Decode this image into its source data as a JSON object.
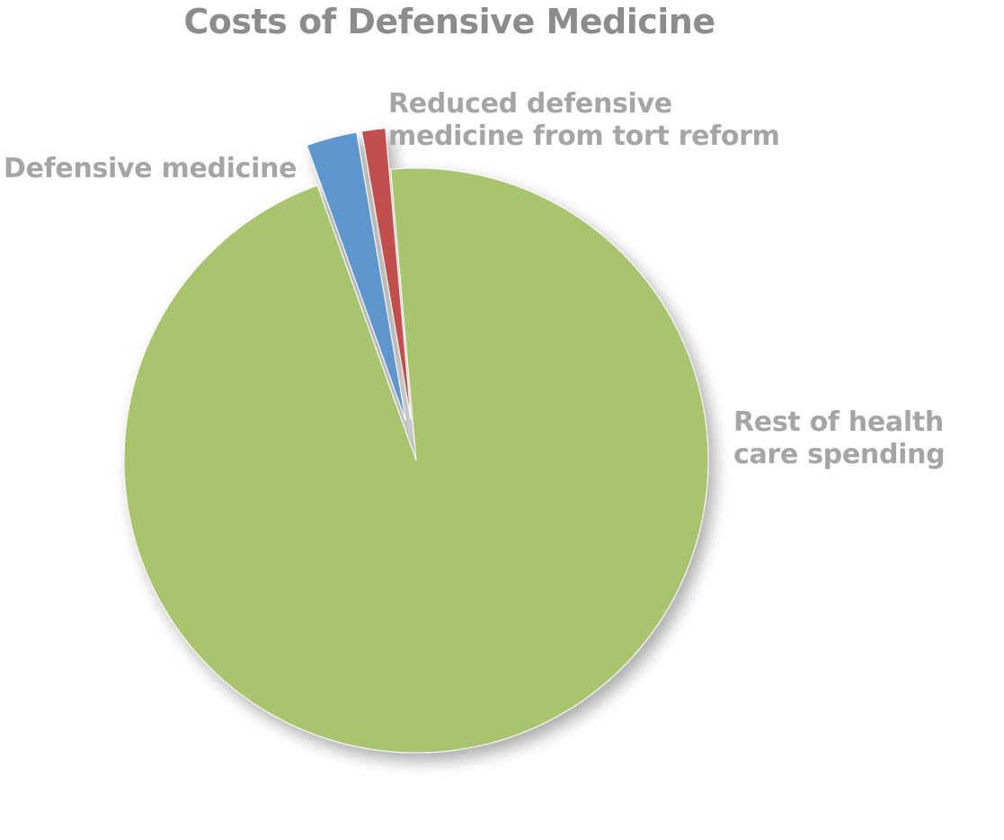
{
  "chart_data": {
    "type": "pie",
    "title": "Costs of Defensive Medicine",
    "slices": [
      {
        "label": "Rest of health care spending",
        "value": 95.9,
        "color": "#a9c46e",
        "exploded": false
      },
      {
        "label": "Defensive medicine",
        "value": 2.8,
        "color": "#5f96cd",
        "exploded": true
      },
      {
        "label": "Reduced defensive medicine from tort reform",
        "value": 1.3,
        "color": "#c0504d",
        "exploded": true
      }
    ],
    "start_angle_deg": -5,
    "direction": "clockwise",
    "legend": "none",
    "data_labels": "category-name"
  }
}
